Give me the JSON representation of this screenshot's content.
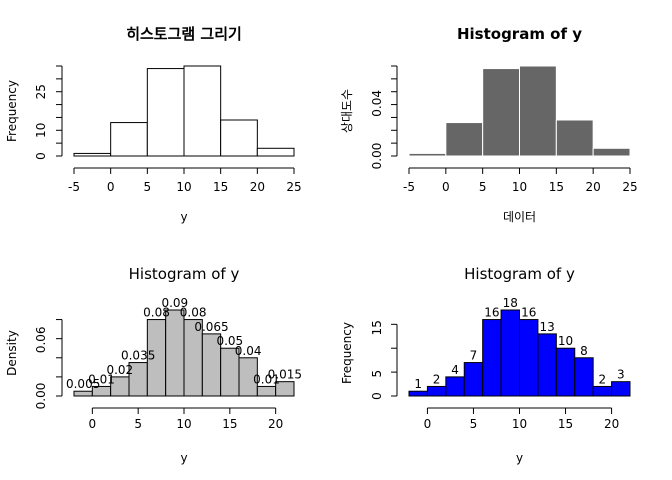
{
  "chart_data": [
    {
      "type": "bar",
      "title": "히스토그램 그리기",
      "xlabel": "y",
      "ylabel": "Frequency",
      "bins": [
        [
          -5,
          0
        ],
        [
          0,
          5
        ],
        [
          5,
          10
        ],
        [
          10,
          15
        ],
        [
          15,
          20
        ],
        [
          20,
          25
        ]
      ],
      "values": [
        1,
        13,
        34,
        35,
        14,
        3
      ],
      "xlim": [
        -5,
        25
      ],
      "xticks": [
        "-5",
        "0",
        "5",
        "10",
        "15",
        "20",
        "25"
      ],
      "ylim": [
        0,
        35
      ],
      "yticks": [
        "0",
        "10",
        "25"
      ],
      "fill": "#ffffff",
      "border": "#000000",
      "grid": false
    },
    {
      "type": "bar",
      "title": "Histogram of y",
      "xlabel": "데이터",
      "ylabel": "상대도수",
      "bins": [
        [
          -5,
          0
        ],
        [
          0,
          5
        ],
        [
          5,
          10
        ],
        [
          10,
          15
        ],
        [
          15,
          20
        ],
        [
          20,
          25
        ]
      ],
      "values": [
        0.002,
        0.026,
        0.068,
        0.07,
        0.028,
        0.006
      ],
      "xlim": [
        -5,
        25
      ],
      "xticks": [
        "-5",
        "0",
        "5",
        "10",
        "15",
        "20",
        "25"
      ],
      "ylim": [
        0,
        0.07
      ],
      "yticks": [
        "0.00",
        "0.04"
      ],
      "fill": "#666666",
      "border": "#ffffff",
      "grid": false
    },
    {
      "type": "bar",
      "title": "Histogram of y",
      "xlabel": "y",
      "ylabel": "Density",
      "bins": [
        [
          -2,
          0
        ],
        [
          0,
          2
        ],
        [
          2,
          4
        ],
        [
          4,
          6
        ],
        [
          6,
          8
        ],
        [
          8,
          10
        ],
        [
          10,
          12
        ],
        [
          12,
          14
        ],
        [
          14,
          16
        ],
        [
          16,
          18
        ],
        [
          18,
          20
        ],
        [
          20,
          22
        ]
      ],
      "values": [
        0.005,
        0.01,
        0.02,
        0.035,
        0.08,
        0.09,
        0.08,
        0.065,
        0.05,
        0.04,
        0.01,
        0.015
      ],
      "labels": [
        "0.005",
        "0.01",
        "0.02",
        "0.035",
        "0.08",
        "0.09",
        "0.08",
        "0.065",
        "0.05",
        "0.04",
        "0.01",
        "0.015"
      ],
      "xlim": [
        -2,
        22
      ],
      "xticks": [
        "0",
        "5",
        "10",
        "15",
        "20"
      ],
      "ylim": [
        0,
        0.09
      ],
      "yticks": [
        "0.00",
        "0.06"
      ],
      "fill": "#bebebe",
      "border": "#000000",
      "grid": false
    },
    {
      "type": "bar",
      "title": "Histogram of y",
      "xlabel": "y",
      "ylabel": "Frequency",
      "bins": [
        [
          -2,
          0
        ],
        [
          0,
          2
        ],
        [
          2,
          4
        ],
        [
          4,
          6
        ],
        [
          6,
          8
        ],
        [
          8,
          10
        ],
        [
          10,
          12
        ],
        [
          12,
          14
        ],
        [
          14,
          16
        ],
        [
          16,
          18
        ],
        [
          18,
          20
        ],
        [
          20,
          22
        ]
      ],
      "values": [
        1,
        2,
        4,
        7,
        16,
        18,
        16,
        13,
        10,
        8,
        2,
        3
      ],
      "labels": [
        "1",
        "2",
        "4",
        "7",
        "16",
        "18",
        "16",
        "13",
        "10",
        "8",
        "2",
        "3"
      ],
      "xlim": [
        -2,
        22
      ],
      "xticks": [
        "0",
        "5",
        "10",
        "15",
        "20"
      ],
      "ylim": [
        0,
        18
      ],
      "yticks": [
        "0",
        "5",
        "15"
      ],
      "fill": "#0000ff",
      "border": "#000000",
      "grid": false
    }
  ]
}
